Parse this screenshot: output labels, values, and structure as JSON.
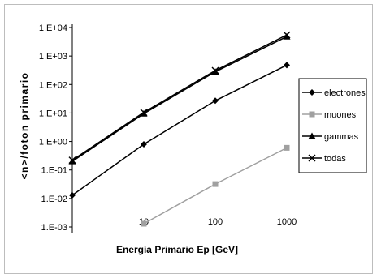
{
  "chart_data": {
    "type": "line",
    "title": "",
    "xlabel": "Energía Primario  Ep [GeV]",
    "ylabel": "<n>/foton primario",
    "x_scale": "log",
    "y_scale": "log",
    "xlim": [
      1,
      1000
    ],
    "ylim": [
      0.001,
      10000
    ],
    "x_ticks": [
      "10",
      "100",
      "1000"
    ],
    "y_ticks": [
      "1.E-03",
      "1.E-02",
      "1.E-01",
      "1.E+00",
      "1.E+01",
      "1.E+02",
      "1.E+03",
      "1.E+04"
    ],
    "grid": false,
    "legend_position": "right",
    "x": [
      1,
      10,
      100,
      1000
    ],
    "series": [
      {
        "name": "electrones",
        "color": "#000000",
        "marker": "diamond",
        "x": [
          1,
          10,
          100,
          1000
        ],
        "values": [
          0.013,
          0.8,
          27,
          480
        ]
      },
      {
        "name": "muones",
        "color": "#a0a0a0",
        "marker": "square",
        "x": [
          10,
          100,
          1000
        ],
        "values": [
          0.0013,
          0.032,
          0.6
        ]
      },
      {
        "name": "gammas",
        "color": "#000000",
        "marker": "triangle",
        "x": [
          1,
          10,
          100,
          1000
        ],
        "values": [
          0.2,
          9.5,
          280,
          4800
        ]
      },
      {
        "name": "todas",
        "color": "#000000",
        "marker": "x",
        "x": [
          1,
          10,
          100,
          1000
        ],
        "values": [
          0.22,
          10.5,
          310,
          5500
        ]
      }
    ]
  }
}
